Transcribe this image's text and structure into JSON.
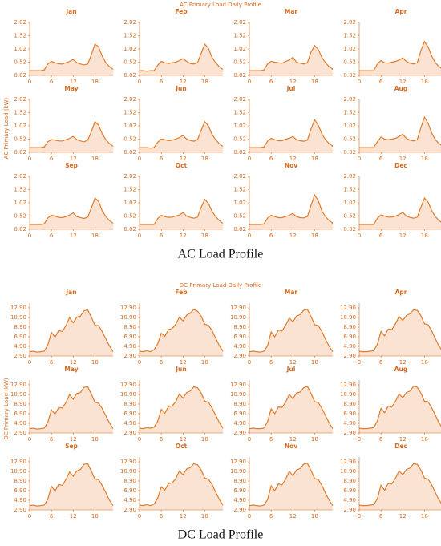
{
  "chart_data": [
    {
      "type": "area",
      "title": "AC Primary Load Daily Profile",
      "ylabel": "AC Primary Load (kW)",
      "caption": "AC Load Profile",
      "color": "#e07b2a",
      "fill": "#fbe3d3",
      "x": [
        0,
        1,
        2,
        3,
        4,
        5,
        6,
        7,
        8,
        9,
        10,
        11,
        12,
        13,
        14,
        15,
        16,
        17,
        18,
        19,
        20,
        21,
        22,
        23
      ],
      "xlim": [
        0,
        23
      ],
      "xticks": [
        0,
        6,
        12,
        18
      ],
      "ylim": [
        0.02,
        2.02
      ],
      "yticks": [
        0.02,
        0.52,
        1.02,
        1.52,
        2.02
      ],
      "panels": [
        {
          "title": "Jan",
          "values": [
            0.2,
            0.2,
            0.2,
            0.2,
            0.22,
            0.45,
            0.55,
            0.5,
            0.46,
            0.45,
            0.5,
            0.55,
            0.62,
            0.5,
            0.45,
            0.42,
            0.45,
            0.8,
            1.2,
            1.1,
            0.75,
            0.5,
            0.35,
            0.25
          ]
        },
        {
          "title": "Feb",
          "values": [
            0.2,
            0.2,
            0.18,
            0.2,
            0.2,
            0.4,
            0.55,
            0.5,
            0.47,
            0.5,
            0.52,
            0.58,
            0.65,
            0.55,
            0.47,
            0.45,
            0.5,
            0.85,
            1.2,
            1.05,
            0.7,
            0.5,
            0.35,
            0.25
          ]
        },
        {
          "title": "Mar",
          "values": [
            0.2,
            0.2,
            0.2,
            0.2,
            0.22,
            0.45,
            0.55,
            0.52,
            0.5,
            0.48,
            0.55,
            0.6,
            0.7,
            0.52,
            0.48,
            0.45,
            0.5,
            0.9,
            1.15,
            1.0,
            0.7,
            0.5,
            0.35,
            0.25
          ]
        },
        {
          "title": "Apr",
          "values": [
            0.2,
            0.2,
            0.2,
            0.2,
            0.2,
            0.45,
            0.58,
            0.5,
            0.48,
            0.52,
            0.55,
            0.6,
            0.68,
            0.55,
            0.48,
            0.45,
            0.5,
            0.95,
            1.3,
            1.1,
            0.75,
            0.5,
            0.35,
            0.25
          ]
        },
        {
          "title": "May",
          "values": [
            0.2,
            0.2,
            0.2,
            0.2,
            0.22,
            0.42,
            0.5,
            0.48,
            0.45,
            0.45,
            0.5,
            0.55,
            0.62,
            0.5,
            0.45,
            0.42,
            0.48,
            0.8,
            1.18,
            1.05,
            0.72,
            0.5,
            0.35,
            0.25
          ]
        },
        {
          "title": "Jun",
          "values": [
            0.2,
            0.2,
            0.2,
            0.18,
            0.2,
            0.4,
            0.52,
            0.5,
            0.46,
            0.48,
            0.52,
            0.58,
            0.66,
            0.52,
            0.47,
            0.44,
            0.5,
            0.85,
            1.18,
            1.02,
            0.7,
            0.5,
            0.35,
            0.25
          ]
        },
        {
          "title": "Jul",
          "values": [
            0.2,
            0.2,
            0.2,
            0.2,
            0.22,
            0.44,
            0.55,
            0.5,
            0.46,
            0.46,
            0.52,
            0.55,
            0.62,
            0.5,
            0.46,
            0.44,
            0.48,
            0.9,
            1.25,
            1.05,
            0.72,
            0.5,
            0.35,
            0.25
          ]
        },
        {
          "title": "Aug",
          "values": [
            0.2,
            0.2,
            0.2,
            0.2,
            0.2,
            0.42,
            0.6,
            0.52,
            0.5,
            0.52,
            0.55,
            0.62,
            0.7,
            0.55,
            0.48,
            0.45,
            0.5,
            0.95,
            1.35,
            1.12,
            0.75,
            0.5,
            0.35,
            0.25
          ]
        },
        {
          "title": "Sep",
          "values": [
            0.2,
            0.2,
            0.2,
            0.2,
            0.22,
            0.45,
            0.55,
            0.52,
            0.47,
            0.46,
            0.5,
            0.56,
            0.64,
            0.5,
            0.46,
            0.43,
            0.48,
            0.82,
            1.2,
            1.08,
            0.72,
            0.5,
            0.35,
            0.25
          ]
        },
        {
          "title": "Oct",
          "values": [
            0.2,
            0.2,
            0.2,
            0.2,
            0.2,
            0.42,
            0.55,
            0.5,
            0.47,
            0.48,
            0.52,
            0.56,
            0.65,
            0.52,
            0.47,
            0.44,
            0.48,
            0.85,
            1.15,
            1.0,
            0.7,
            0.5,
            0.35,
            0.25
          ]
        },
        {
          "title": "Nov",
          "values": [
            0.2,
            0.2,
            0.2,
            0.2,
            0.22,
            0.44,
            0.55,
            0.5,
            0.46,
            0.46,
            0.5,
            0.55,
            0.62,
            0.5,
            0.46,
            0.45,
            0.5,
            0.92,
            1.32,
            1.1,
            0.72,
            0.5,
            0.35,
            0.25
          ]
        },
        {
          "title": "Dec",
          "values": [
            0.2,
            0.2,
            0.2,
            0.2,
            0.2,
            0.44,
            0.56,
            0.52,
            0.48,
            0.48,
            0.52,
            0.58,
            0.66,
            0.52,
            0.47,
            0.44,
            0.48,
            0.85,
            1.2,
            1.05,
            0.72,
            0.5,
            0.35,
            0.25
          ]
        }
      ]
    },
    {
      "type": "area",
      "title": "DC Primary Load Daily Profile",
      "ylabel": "DC Primary Load (kW)",
      "caption": "DC Load Profile",
      "color": "#e07b2a",
      "fill": "#fbe3d3",
      "x": [
        0,
        1,
        2,
        3,
        4,
        5,
        6,
        7,
        8,
        9,
        10,
        11,
        12,
        13,
        14,
        15,
        16,
        17,
        18,
        19,
        20,
        21,
        22,
        23
      ],
      "xlim": [
        0,
        23
      ],
      "xticks": [
        0,
        6,
        12,
        18
      ],
      "ylim": [
        2.9,
        13.9
      ],
      "yticks": [
        {
          "value": 2.9,
          "label": "2.90"
        },
        {
          "value": 4.9,
          "label": "4.90"
        },
        {
          "value": 6.9,
          "label": "6.90"
        },
        {
          "value": 8.9,
          "label": "8.90"
        },
        {
          "value": 10.9,
          "label": "10.90"
        },
        {
          "value": 12.9,
          "label": "12.90"
        }
      ],
      "panels": [
        {
          "title": "Jan",
          "values": [
            3.8,
            3.9,
            3.7,
            3.8,
            3.9,
            5.2,
            7.8,
            6.8,
            8.2,
            8.0,
            9.2,
            10.9,
            9.8,
            11.0,
            11.2,
            12.3,
            12.5,
            11.0,
            9.3,
            9.2,
            8.0,
            6.5,
            5.0,
            3.8
          ]
        },
        {
          "title": "Feb",
          "values": [
            3.9,
            3.8,
            4.0,
            3.8,
            4.2,
            5.4,
            7.6,
            7.0,
            8.4,
            8.6,
            9.5,
            11.0,
            10.2,
            11.4,
            11.8,
            12.6,
            12.2,
            11.2,
            9.5,
            9.3,
            8.2,
            6.6,
            5.1,
            3.9
          ]
        },
        {
          "title": "Mar",
          "values": [
            3.8,
            3.9,
            3.8,
            3.7,
            3.9,
            5.0,
            7.9,
            6.9,
            8.3,
            8.1,
            9.3,
            10.8,
            10.0,
            11.2,
            11.5,
            12.4,
            12.6,
            11.1,
            9.4,
            9.2,
            8.0,
            6.4,
            4.9,
            3.8
          ]
        },
        {
          "title": "Apr",
          "values": [
            3.9,
            3.8,
            3.8,
            3.9,
            4.0,
            5.3,
            8.0,
            7.1,
            8.5,
            8.4,
            9.6,
            11.1,
            10.3,
            11.3,
            11.7,
            12.5,
            12.4,
            11.3,
            9.6,
            9.4,
            8.1,
            6.5,
            5.0,
            3.9
          ]
        },
        {
          "title": "May",
          "values": [
            3.8,
            3.9,
            3.7,
            3.8,
            3.9,
            5.1,
            7.7,
            6.8,
            8.2,
            8.1,
            9.2,
            10.9,
            9.9,
            11.1,
            11.3,
            12.4,
            12.5,
            11.0,
            9.3,
            9.1,
            8.0,
            6.5,
            5.0,
            3.8
          ]
        },
        {
          "title": "Jun",
          "values": [
            3.9,
            3.8,
            4.0,
            3.9,
            4.1,
            5.3,
            7.8,
            7.0,
            8.4,
            8.5,
            9.4,
            11.0,
            10.1,
            11.3,
            11.6,
            12.5,
            12.3,
            11.2,
            9.5,
            9.3,
            8.1,
            6.6,
            5.1,
            3.9
          ]
        },
        {
          "title": "Jul",
          "values": [
            3.8,
            3.9,
            3.8,
            3.8,
            3.9,
            5.2,
            7.9,
            6.9,
            8.3,
            8.2,
            9.3,
            10.9,
            10.0,
            11.2,
            11.4,
            12.3,
            12.6,
            11.1,
            9.4,
            9.2,
            8.0,
            6.5,
            5.0,
            3.8
          ]
        },
        {
          "title": "Aug",
          "values": [
            3.9,
            3.8,
            3.8,
            3.9,
            4.0,
            5.4,
            8.0,
            7.1,
            8.5,
            8.3,
            9.5,
            11.0,
            10.2,
            11.3,
            11.6,
            12.6,
            12.4,
            11.2,
            9.5,
            9.4,
            8.1,
            6.6,
            5.0,
            3.9
          ]
        },
        {
          "title": "Sep",
          "values": [
            3.8,
            3.9,
            3.7,
            3.8,
            3.9,
            5.1,
            7.8,
            6.8,
            8.2,
            8.0,
            9.2,
            10.8,
            9.9,
            11.0,
            11.3,
            12.4,
            12.5,
            11.0,
            9.3,
            9.2,
            8.0,
            6.5,
            4.9,
            3.8
          ]
        },
        {
          "title": "Oct",
          "values": [
            3.9,
            3.8,
            4.0,
            3.8,
            4.1,
            5.3,
            7.7,
            7.0,
            8.4,
            8.5,
            9.4,
            11.0,
            10.2,
            11.4,
            11.7,
            12.5,
            12.3,
            11.2,
            9.5,
            9.3,
            8.2,
            6.6,
            5.1,
            3.9
          ]
        },
        {
          "title": "Nov",
          "values": [
            3.8,
            3.9,
            3.8,
            3.7,
            3.9,
            5.0,
            7.9,
            6.9,
            8.3,
            8.1,
            9.3,
            10.9,
            10.0,
            11.2,
            11.5,
            12.4,
            12.6,
            11.1,
            9.4,
            9.2,
            8.0,
            6.4,
            4.9,
            3.8
          ]
        },
        {
          "title": "Dec",
          "values": [
            3.9,
            3.8,
            3.8,
            3.9,
            4.0,
            5.2,
            8.0,
            7.0,
            8.4,
            8.3,
            9.5,
            11.0,
            10.2,
            11.3,
            11.6,
            12.5,
            12.4,
            11.2,
            9.5,
            9.3,
            8.1,
            6.5,
            5.0,
            3.9
          ]
        }
      ]
    }
  ]
}
